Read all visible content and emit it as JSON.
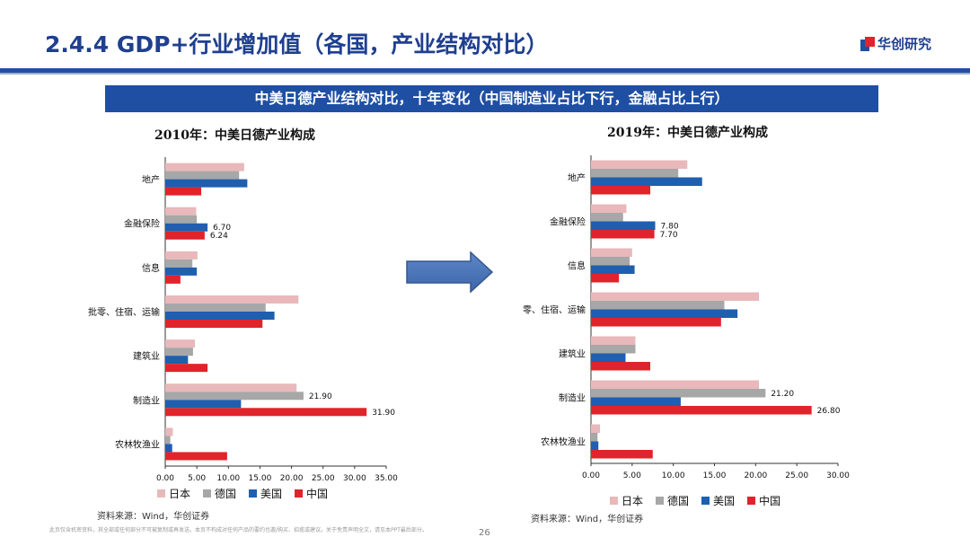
{
  "header": {
    "title": "2.4.4 GDP+行业增加值（各国，产业结构对比）",
    "logo_text": "华创研究"
  },
  "banner": {
    "text": "中美日德产业结构对比，十年变化（中国制造业占比下行，金融占比上行）"
  },
  "colors": {
    "japan": "#e8b8bb",
    "germany": "#a7a7a7",
    "usa": "#1f5fb0",
    "china": "#e0242b",
    "brand": "#1f4fa3"
  },
  "footer": {
    "disclaimer": "此页仅含机密资料，其全部或任何部分不可被复制或再发送。本页不构成对任何产品的要约也邀/购买、招揽或建议。关于免责声明全文，请见本PPT最后部分。",
    "page": "26"
  },
  "chart_data": [
    {
      "type": "bar",
      "orientation": "horizontal",
      "title": "2010年：中美日德产业构成",
      "categories": [
        "地产",
        "金融保险",
        "信息",
        "批发零售、住宿、运输",
        "建筑业",
        "制造业",
        "农林牧渔业"
      ],
      "category_display": [
        "地产",
        "金融保险",
        "信息",
        "批零、住宿、运输",
        "建筑业",
        "制造业",
        "农林牧渔业"
      ],
      "series": [
        {
          "name": "日本",
          "values": [
            12.5,
            4.9,
            5.1,
            21.1,
            4.7,
            20.8,
            1.2
          ]
        },
        {
          "name": "德国",
          "values": [
            11.7,
            5.0,
            4.3,
            15.9,
            4.4,
            21.9,
            0.8
          ]
        },
        {
          "name": "美国",
          "values": [
            13.0,
            6.7,
            5.0,
            17.3,
            3.6,
            12.0,
            1.1
          ]
        },
        {
          "name": "中国",
          "values": [
            5.7,
            6.24,
            2.4,
            15.4,
            6.7,
            31.9,
            9.8
          ]
        }
      ],
      "data_labels": [
        {
          "text": "6.70",
          "category": 1,
          "series": 2
        },
        {
          "text": "6.24",
          "category": 1,
          "series": 3
        },
        {
          "text": "21.90",
          "category": 5,
          "series": 1
        },
        {
          "text": "31.90",
          "category": 5,
          "series": 3
        }
      ],
      "xlim": [
        0,
        35
      ],
      "xticks": [
        "0.00",
        "5.00",
        "10.00",
        "15.00",
        "20.00",
        "25.00",
        "30.00",
        "35.00"
      ],
      "legend": [
        "日本",
        "德国",
        "美国",
        "中国"
      ],
      "source": "资料来源：Wind，华创证券"
    },
    {
      "type": "bar",
      "orientation": "horizontal",
      "title": "2019年：中美日德产业构成",
      "categories": [
        "地产",
        "金融保险",
        "信息",
        "批发零售、住宿、运输",
        "建筑业",
        "制造业",
        "农林牧渔业"
      ],
      "category_display": [
        "地产",
        "金融保险",
        "信息",
        "零、住宿、运输",
        "建筑业",
        "制造业",
        "农林牧渔业"
      ],
      "series": [
        {
          "name": "日本",
          "values": [
            11.7,
            4.3,
            5.0,
            20.4,
            5.4,
            20.4,
            1.1
          ]
        },
        {
          "name": "德国",
          "values": [
            10.6,
            3.9,
            4.7,
            16.2,
            5.4,
            21.2,
            0.8
          ]
        },
        {
          "name": "美国",
          "values": [
            13.5,
            7.8,
            5.3,
            17.8,
            4.2,
            10.9,
            0.9
          ]
        },
        {
          "name": "中国",
          "values": [
            7.2,
            7.7,
            3.4,
            15.8,
            7.2,
            26.8,
            7.5
          ]
        }
      ],
      "data_labels": [
        {
          "text": "7.80",
          "category": 1,
          "series": 2
        },
        {
          "text": "7.70",
          "category": 1,
          "series": 3
        },
        {
          "text": "21.20",
          "category": 5,
          "series": 1
        },
        {
          "text": "26.80",
          "category": 5,
          "series": 3
        }
      ],
      "xlim": [
        0,
        30
      ],
      "xticks": [
        "0.00",
        "5.00",
        "10.00",
        "15.00",
        "20.00",
        "25.00",
        "30.00"
      ],
      "legend": [
        "日本",
        "德国",
        "美国",
        "中国"
      ],
      "source": "资料来源：Wind，华创证券"
    }
  ]
}
